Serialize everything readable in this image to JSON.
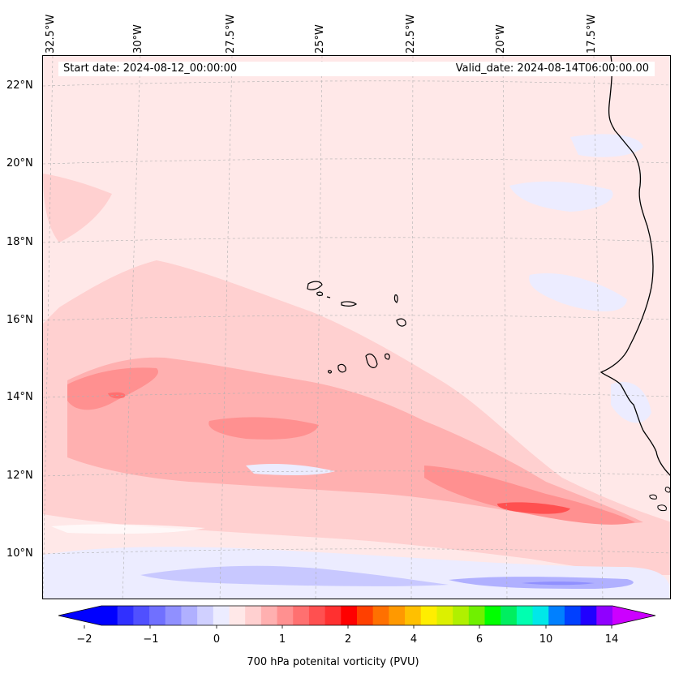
{
  "map": {
    "start_date": "Start date: 2024-08-12_00:00:00",
    "valid_date": "Valid_date: 2024-08-14T06:00:00.00",
    "lon_labels": [
      "32.5°W",
      "30°W",
      "27.5°W",
      "25°W",
      "22.5°W",
      "20°W",
      "17.5°W"
    ],
    "lat_labels": [
      "22°N",
      "20°N",
      "18°N",
      "16°N",
      "14°N",
      "12°N",
      "10°N"
    ],
    "field": "700 hPa potential vorticity",
    "colors": {
      "background_field": "#ffe8e8",
      "light_pink": "#ffd0d0",
      "pink": "#ffb0b0",
      "salmon": "#ff9090",
      "red": "#ff5050",
      "light_blue": "#ececff",
      "blue": "#c8c8ff",
      "coast": "#000000"
    }
  },
  "colorbar": {
    "label": "700 hPa potenital vorticity (PVU)",
    "tick_labels": [
      "−2",
      "−1",
      "0",
      "1",
      "2",
      "4",
      "6",
      "10",
      "14"
    ],
    "colors": [
      "#0000ff",
      "#3030ff",
      "#5050ff",
      "#7070ff",
      "#9090ff",
      "#b0b0ff",
      "#d0d0ff",
      "#ececff",
      "#ffe8e8",
      "#ffd0d0",
      "#ffb0b0",
      "#ff9090",
      "#ff7070",
      "#ff5050",
      "#ff3030",
      "#ff0000",
      "#ff4000",
      "#ff7000",
      "#ff9900",
      "#ffc000",
      "#ffee00",
      "#dcf000",
      "#b0f000",
      "#70f000",
      "#00ff00",
      "#00ee60",
      "#00ffb0",
      "#00e8e8",
      "#0080ff",
      "#0040ff",
      "#2000ff",
      "#9000ff"
    ],
    "under_color": "#0000ff",
    "over_color": "#cc00ff"
  }
}
